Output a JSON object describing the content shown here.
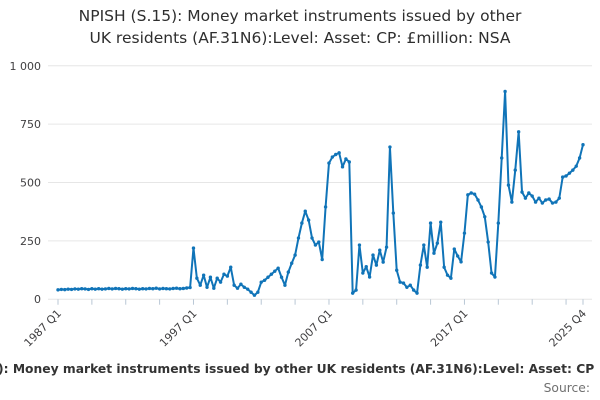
{
  "title": {
    "line1": "NPISH (S.15): Money market instruments issued by other",
    "line2": "UK residents (AF.31N6):Level: Asset: CP: £million: NSA"
  },
  "footer": {
    "caption_visible": "): Money market instruments issued by other UK residents (AF.31N6):Level: Asset: CP",
    "source_label": "Source:"
  },
  "colors": {
    "line": "#1074b8",
    "grid": "#e6e6e6",
    "tick": "#b9c7d5",
    "axis_text": "#414042",
    "title_text": "#2e2e2e"
  },
  "chart_data": {
    "type": "line",
    "title": "NPISH (S.15): Money market instruments issued by other UK residents (AF.31N6):Level: Asset: CP: £million: NSA",
    "xlabel": "",
    "ylabel": "",
    "unit": "£million",
    "frequency": "quarterly",
    "x_start": "1987 Q1",
    "x_end": "2025 Q4",
    "ylim": [
      0,
      1000
    ],
    "y_gridlines": [
      0,
      250,
      500,
      750,
      1000
    ],
    "y_tick_labels": [
      "0",
      "250",
      "500",
      "750",
      "1 000"
    ],
    "x_tick_labels": [
      "1987 Q1",
      "1997 Q1",
      "2007 Q1",
      "2017 Q1",
      "2025 Q4"
    ],
    "labeled_tick_indices": [
      0,
      40,
      80,
      120,
      155
    ],
    "minor_tick_step": 10,
    "grid": true,
    "legend": "none",
    "marker": "dot",
    "values": [
      40,
      42,
      41,
      43,
      42,
      44,
      43,
      45,
      44,
      42,
      45,
      43,
      45,
      43,
      44,
      46,
      44,
      46,
      45,
      43,
      45,
      44,
      46,
      45,
      43,
      45,
      44,
      46,
      45,
      47,
      44,
      46,
      45,
      44,
      46,
      47,
      45,
      46,
      48,
      50,
      219,
      90,
      60,
      103,
      51,
      94,
      47,
      90,
      73,
      107,
      99,
      137,
      60,
      47,
      64,
      51,
      43,
      30,
      17,
      30,
      73,
      81,
      94,
      107,
      120,
      133,
      94,
      60,
      116,
      154,
      189,
      262,
      326,
      377,
      339,
      262,
      232,
      245,
      170,
      395,
      583,
      609,
      620,
      627,
      567,
      601,
      588,
      26,
      39,
      232,
      112,
      139,
      95,
      189,
      146,
      210,
      159,
      223,
      652,
      369,
      124,
      73,
      69,
      51,
      60,
      39,
      26,
      146,
      232,
      137,
      326,
      197,
      240,
      330,
      137,
      103,
      90,
      215,
      185,
      160,
      283,
      447,
      455,
      450,
      425,
      395,
      353,
      245,
      112,
      95,
      326,
      605,
      890,
      489,
      416,
      553,
      717,
      459,
      433,
      455,
      442,
      416,
      433,
      412,
      425,
      429,
      412,
      416,
      433,
      523,
      528,
      540,
      553,
      570,
      605,
      662
    ]
  }
}
